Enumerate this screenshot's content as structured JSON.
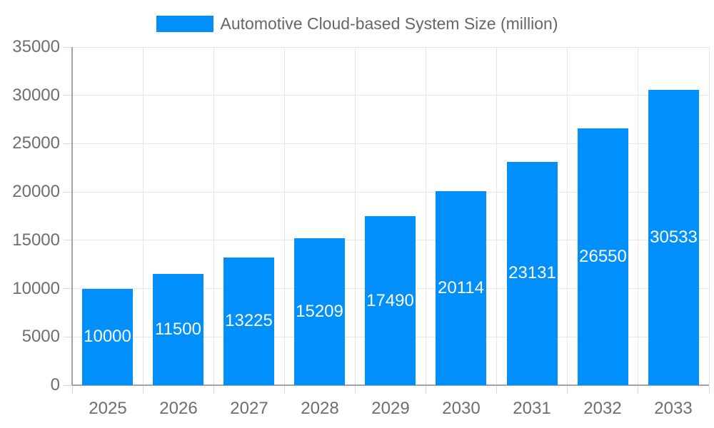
{
  "legend": {
    "items": [
      {
        "label": "Automotive Cloud-based System Size (million)",
        "color": "#008FFB"
      }
    ]
  },
  "chart_data": {
    "type": "bar",
    "title": "Automotive Cloud-based System Size (million)",
    "categories": [
      "2025",
      "2026",
      "2027",
      "2028",
      "2029",
      "2030",
      "2031",
      "2032",
      "2033"
    ],
    "series": [
      {
        "name": "Automotive Cloud-based System Size (million)",
        "values": [
          10000,
          11500,
          13225,
          15209,
          17490,
          20114,
          23131,
          26550,
          30533
        ],
        "color": "#008FFB"
      }
    ],
    "xlabel": "",
    "ylabel": "",
    "ylim": [
      0,
      35000
    ],
    "ytick_step": 5000,
    "yticks": [
      0,
      5000,
      10000,
      15000,
      20000,
      25000,
      30000,
      35000
    ],
    "grid": true,
    "legend_position": "top",
    "value_labels": "inside-center",
    "value_label_color": "#ffffff"
  },
  "colors": {
    "bar": "#008FFB",
    "grid": "#e6e6e6",
    "axis": "#a3a3a3",
    "tick_mark": "#d9d9d9",
    "tick_label": "#6e6e6e",
    "legend_text": "#666666",
    "background": "#ffffff"
  }
}
